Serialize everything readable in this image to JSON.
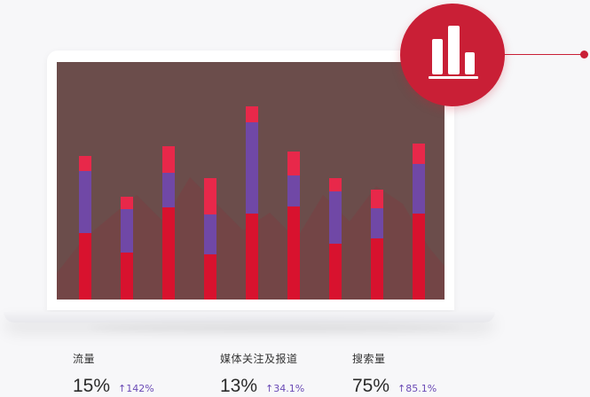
{
  "chart_data": {
    "type": "bar",
    "stacked": true,
    "categories": [
      "",
      "",
      "",
      "",
      "",
      "",
      "",
      "",
      ""
    ],
    "series": [
      {
        "values": [
          75,
          53,
          104,
          51,
          97,
          105,
          63,
          69,
          97
        ],
        "color": "#d8122e"
      },
      {
        "values": [
          70,
          49,
          39,
          45,
          103,
          35,
          59,
          34,
          56
        ],
        "color": "#7048a6"
      },
      {
        "values": [
          17,
          14,
          30,
          41,
          18,
          27,
          15,
          21,
          23
        ],
        "color": "#e8284a"
      }
    ],
    "ylim": [
      0,
      268
    ]
  },
  "badge": {
    "icon": "bar-chart-icon",
    "color": "#c91f36"
  },
  "stats": [
    {
      "label": "流量",
      "value": "15%",
      "change": "↑142%"
    },
    {
      "label": "媒体关注及报道",
      "value": "13%",
      "change": "↑34.1%"
    },
    {
      "label": "搜索量",
      "value": "75%",
      "change": "↑85.1%"
    }
  ],
  "colors": {
    "accent": "#c91f36",
    "change": "#6a4ab5",
    "screen_bg": "#6b4d4b"
  }
}
